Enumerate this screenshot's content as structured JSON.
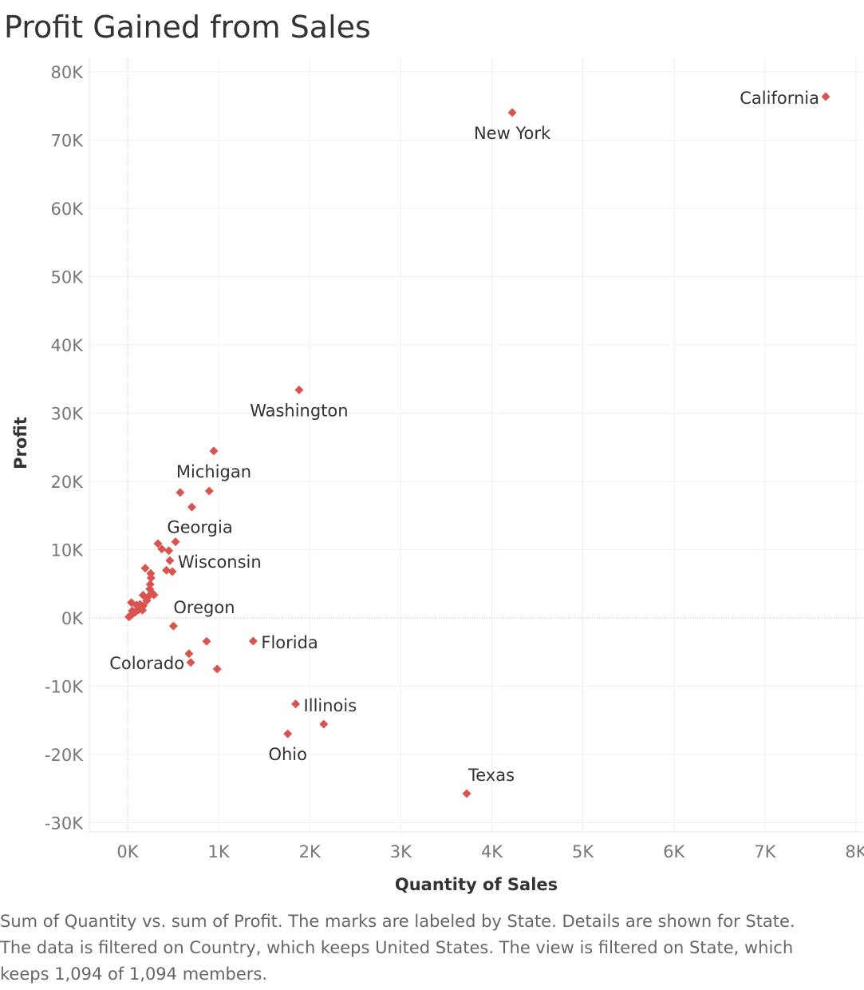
{
  "title": "Profit Gained from Sales",
  "caption": [
    "Sum of Quantity vs. sum of Profit.  The marks are labeled by State.  Details are shown for State.",
    "The data is filtered on Country, which keeps United States. The view is filtered on State, which",
    "keeps 1,094 of 1,094 members."
  ],
  "chart_data": {
    "type": "scatter",
    "title": "Profit Gained from Sales",
    "xlabel": "Quantity of Sales",
    "ylabel": "Profit",
    "xlim": [
      -420,
      8100
    ],
    "ylim": [
      -31000,
      82000
    ],
    "x_ticks": [
      0,
      1000,
      2000,
      3000,
      4000,
      5000,
      6000,
      7000,
      8000
    ],
    "x_tick_labels": [
      "0K",
      "1K",
      "2K",
      "3K",
      "4K",
      "5K",
      "6K",
      "7K",
      "8K"
    ],
    "y_ticks": [
      80000,
      70000,
      60000,
      50000,
      40000,
      30000,
      20000,
      10000,
      0,
      -10000,
      -20000,
      -30000
    ],
    "y_tick_labels": [
      "80K",
      "70K",
      "60K",
      "50K",
      "40K",
      "30K",
      "20K",
      "10K",
      "0K",
      "-10K",
      "-20K",
      "-30K"
    ],
    "grid": true,
    "marker": "diamond",
    "marker_color": "#d9534f",
    "points": [
      {
        "x": 7667,
        "y": 76381,
        "label": "California"
      },
      {
        "x": 4224,
        "y": 74039,
        "label": "New York"
      },
      {
        "x": 1883,
        "y": 33403,
        "label": "Washington"
      },
      {
        "x": 946,
        "y": 24463,
        "label": "Michigan"
      },
      {
        "x": 577,
        "y": 18383
      },
      {
        "x": 896,
        "y": 18599
      },
      {
        "x": 705,
        "y": 16250
      },
      {
        "x": 526,
        "y": 11156
      },
      {
        "x": 333,
        "y": 10891
      },
      {
        "x": 375,
        "y": 10102
      },
      {
        "x": 452,
        "y": 9861
      },
      {
        "x": 463,
        "y": 8401,
        "label": "Wisconsin"
      },
      {
        "x": 193,
        "y": 7300
      },
      {
        "x": 426,
        "y": 6990
      },
      {
        "x": 491,
        "y": 6777
      },
      {
        "x": 253,
        "y": 6523
      },
      {
        "x": 257,
        "y": 5866
      },
      {
        "x": 247,
        "y": 4921
      },
      {
        "x": 243,
        "y": 4234
      },
      {
        "x": 266,
        "y": 3718
      },
      {
        "x": 289,
        "y": 3372
      },
      {
        "x": 170,
        "y": 3338
      },
      {
        "x": 224,
        "y": 3075
      },
      {
        "x": 210,
        "y": 2538
      },
      {
        "x": 41,
        "y": 2245
      },
      {
        "x": 136,
        "y": 2000
      },
      {
        "x": 98,
        "y": 1883
      },
      {
        "x": 171,
        "y": 1769
      },
      {
        "x": 148,
        "y": 1423
      },
      {
        "x": 119,
        "y": 1169
      },
      {
        "x": 163,
        "y": 1137
      },
      {
        "x": 51,
        "y": 1059
      },
      {
        "x": 82,
        "y": 823
      },
      {
        "x": 52,
        "y": 563
      },
      {
        "x": 33,
        "y": 333
      },
      {
        "x": 14,
        "y": 167
      },
      {
        "x": 503,
        "y": -1191,
        "label": "Oregon"
      },
      {
        "x": 868,
        "y": -3428
      },
      {
        "x": 1379,
        "y": -3399,
        "label": "Florida"
      },
      {
        "x": 674,
        "y": -5231
      },
      {
        "x": 693,
        "y": -6527,
        "label": "Colorado"
      },
      {
        "x": 983,
        "y": -7491
      },
      {
        "x": 1845,
        "y": -12608,
        "label": "Illinois"
      },
      {
        "x": 2154,
        "y": -15560
      },
      {
        "x": 1759,
        "y": -16971,
        "label": "Ohio"
      },
      {
        "x": 3724,
        "y": -25729,
        "label": "Texas"
      }
    ],
    "annotations": [
      {
        "text": "Georgia",
        "x": 1100,
        "y": 13400
      }
    ]
  }
}
